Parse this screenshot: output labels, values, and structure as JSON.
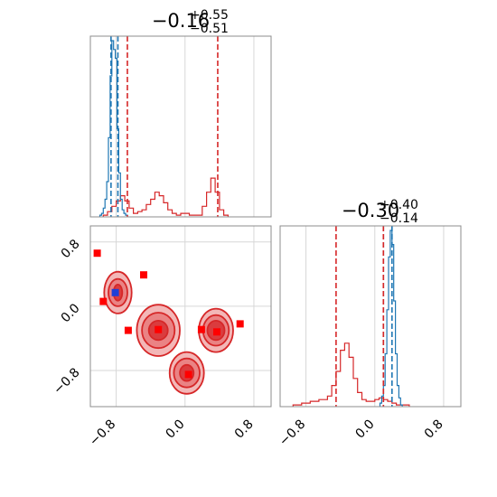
{
  "chart_data": {
    "type": "corner",
    "axis": {
      "xlim": [
        -1.1,
        1.0
      ],
      "ylim": [
        -1.25,
        1.0
      ],
      "ticks": [
        -0.8,
        0.0,
        0.8
      ],
      "tick_labels": [
        "−0.8",
        "0.0",
        "0.8"
      ],
      "grid": true
    },
    "colors": {
      "red": "#d62728",
      "blue": "#1f77b4",
      "red_fill": "#f2b3b3",
      "red_fill_dark": "#d9383a",
      "frame": "#8c8c8c",
      "grid": "#d7d7d7"
    },
    "param_x": {
      "title": {
        "median": "−0.16",
        "plus": "+0.55",
        "minus": "−0.51"
      },
      "median_lines": [
        -0.86,
        -0.78
      ],
      "truth_lines": [
        -0.67,
        0.38
      ],
      "hist_blue": {
        "bins": [
          -0.99,
          -0.97,
          -0.95,
          -0.93,
          -0.91,
          -0.89,
          -0.87,
          -0.85,
          -0.83,
          -0.81,
          -0.79,
          -0.77,
          -0.75,
          -0.73,
          -0.71,
          -0.69,
          -0.67
        ],
        "counts": [
          1,
          2,
          5,
          10,
          20,
          45,
          80,
          100,
          95,
          90,
          50,
          25,
          10,
          4,
          2,
          1
        ]
      },
      "hist_red": {
        "bins": [
          -0.95,
          -0.9,
          -0.85,
          -0.8,
          -0.75,
          -0.7,
          -0.65,
          -0.6,
          -0.55,
          -0.5,
          -0.45,
          -0.4,
          -0.35,
          -0.3,
          -0.25,
          -0.2,
          -0.15,
          -0.1,
          -0.05,
          0.0,
          0.05,
          0.1,
          0.15,
          0.2,
          0.25,
          0.3,
          0.35,
          0.4,
          0.45,
          0.5
        ],
        "counts": [
          1,
          3,
          6,
          9,
          12,
          9,
          5,
          2,
          3,
          4,
          7,
          10,
          14,
          12,
          8,
          4,
          2,
          1,
          2,
          2,
          1,
          1,
          1,
          6,
          14,
          22,
          14,
          4,
          1
        ]
      }
    },
    "param_y": {
      "title": {
        "median": "−0.30",
        "plus": "+0.40",
        "minus": "−0.14"
      },
      "median_lines": [
        0.1,
        0.2
      ],
      "truth_lines": [
        -0.45,
        0.1
      ],
      "hist_blue": {
        "bins": [
          0.06,
          0.08,
          0.1,
          0.12,
          0.14,
          0.16,
          0.18,
          0.2,
          0.22,
          0.24,
          0.26,
          0.28,
          0.3,
          0.32
        ],
        "counts": [
          2,
          6,
          12,
          30,
          55,
          85,
          100,
          92,
          60,
          30,
          12,
          5,
          1
        ]
      },
      "hist_red": {
        "bins": [
          -0.95,
          -0.85,
          -0.75,
          -0.65,
          -0.55,
          -0.5,
          -0.45,
          -0.4,
          -0.35,
          -0.3,
          -0.25,
          -0.2,
          -0.15,
          -0.1,
          -0.05,
          0.0,
          0.05,
          0.1,
          0.15,
          0.2,
          0.25,
          0.3,
          0.35,
          0.4
        ],
        "counts": [
          1,
          2,
          3,
          4,
          6,
          12,
          20,
          32,
          36,
          28,
          16,
          8,
          4,
          3,
          3,
          4,
          5,
          4,
          3,
          2,
          1,
          1,
          1
        ]
      }
    },
    "scatter": {
      "red_squares": [
        {
          "x": -1.02,
          "y": 0.66
        },
        {
          "x": -0.95,
          "y": 0.06
        },
        {
          "x": -0.48,
          "y": 0.39
        },
        {
          "x": -0.66,
          "y": -0.3
        },
        {
          "x": -0.31,
          "y": -0.29
        },
        {
          "x": 0.04,
          "y": -0.85
        },
        {
          "x": 0.19,
          "y": -0.29
        },
        {
          "x": 0.37,
          "y": -0.32
        },
        {
          "x": 0.64,
          "y": -0.22
        }
      ],
      "blue_squares": [
        {
          "x": -0.81,
          "y": 0.17
        }
      ],
      "contours": [
        {
          "cx": -0.78,
          "cy": 0.17,
          "rx": [
            0.16,
            0.11,
            0.05
          ],
          "ry": [
            0.26,
            0.17,
            0.1
          ]
        },
        {
          "cx": -0.31,
          "cy": -0.3,
          "rx": [
            0.25,
            0.19,
            0.11
          ],
          "ry": [
            0.32,
            0.22,
            0.12
          ]
        },
        {
          "cx": 0.36,
          "cy": -0.3,
          "rx": [
            0.2,
            0.15,
            0.1
          ],
          "ry": [
            0.27,
            0.19,
            0.12
          ]
        },
        {
          "cx": 0.02,
          "cy": -0.83,
          "rx": [
            0.2,
            0.15,
            0.08
          ],
          "ry": [
            0.26,
            0.18,
            0.1
          ]
        }
      ]
    }
  }
}
